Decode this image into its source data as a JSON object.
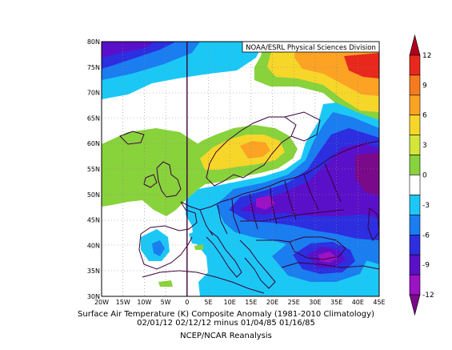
{
  "credit": "NOAA/ESRL Physical Sciences Division",
  "caption": {
    "line1": "Surface Air Temperature (K) Composite Anomaly (1981-2010 Climatology)",
    "line2": "02/01/12 02/12/12 minus 01/04/85 01/16/85",
    "line3": "NCEP/NCAR Reanalysis"
  },
  "map": {
    "lon_range": [
      -20,
      45
    ],
    "lat_range": [
      30,
      80
    ],
    "lon_ticks": [
      "20W",
      "15W",
      "10W",
      "5W",
      "0",
      "5E",
      "10E",
      "15E",
      "20E",
      "25E",
      "30E",
      "35E",
      "40E",
      "45E"
    ],
    "lat_ticks": [
      "30N",
      "35N",
      "40N",
      "45N",
      "50N",
      "55N",
      "60N",
      "65N",
      "70N",
      "75N",
      "80N"
    ],
    "grid": true,
    "prime_meridian_line": true
  },
  "colorbar": {
    "labels": [
      "12",
      "9",
      "6",
      "3",
      "0",
      "-3",
      "-6",
      "-9",
      "-12"
    ],
    "colors_top_to_bottom": [
      "#b0001e",
      "#e8281c",
      "#f67a1e",
      "#fca324",
      "#f7d62a",
      "#d4e63a",
      "#88d23c",
      "#ffffff",
      "#1bc8f5",
      "#1a7df0",
      "#2c2ee0",
      "#5a10c8",
      "#9c12c4",
      "#7a0a8a"
    ]
  }
}
